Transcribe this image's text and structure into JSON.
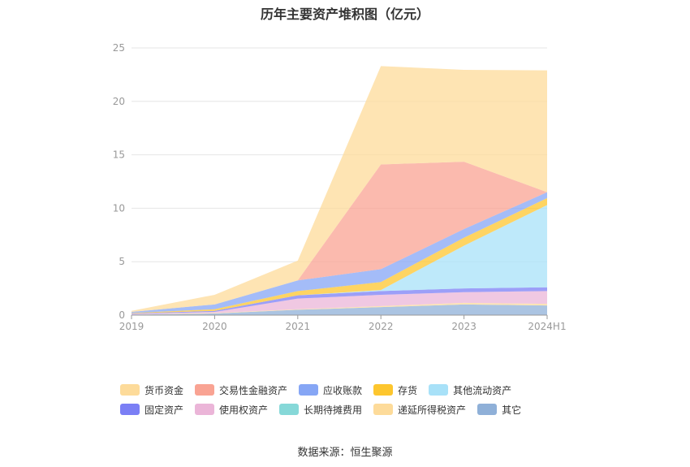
{
  "chart_data": {
    "type": "area",
    "stacked": true,
    "title": "历年主要资产堆积图（亿元）",
    "xlabel": "",
    "ylabel": "",
    "categories": [
      "2019",
      "2020",
      "2021",
      "2022",
      "2023",
      "2024H1"
    ],
    "ylim": [
      0,
      25
    ],
    "yticks": [
      0,
      5,
      10,
      15,
      20,
      25
    ],
    "grid": true,
    "legend_position": "bottom",
    "series": [
      {
        "name": "其它",
        "color": "#8fb0d8",
        "values": [
          0.05,
          0.15,
          0.5,
          0.75,
          1.0,
          0.9
        ]
      },
      {
        "name": "递延所得税资产",
        "color": "#fddb9a",
        "values": [
          0.0,
          0.05,
          0.05,
          0.1,
          0.15,
          0.15
        ]
      },
      {
        "name": "长期待摊费用",
        "color": "#86d8d8",
        "values": [
          0.0,
          0.0,
          0.0,
          0.0,
          0.0,
          0.0
        ]
      },
      {
        "name": "使用权资产",
        "color": "#ebb5d8",
        "values": [
          0.05,
          0.1,
          1.0,
          1.05,
          1.0,
          1.2
        ]
      },
      {
        "name": "固定资产",
        "color": "#7b7ff5",
        "values": [
          0.05,
          0.1,
          0.3,
          0.35,
          0.35,
          0.35
        ]
      },
      {
        "name": "其他流动资产",
        "color": "#a8e1f8",
        "values": [
          0.0,
          0.0,
          0.0,
          0.1,
          4.0,
          7.7
        ]
      },
      {
        "name": "存货",
        "color": "#fdc62e",
        "values": [
          0.05,
          0.15,
          0.4,
          0.75,
          0.75,
          0.65
        ]
      },
      {
        "name": "应收账款",
        "color": "#86a6f5",
        "values": [
          0.1,
          0.45,
          1.0,
          1.2,
          0.8,
          0.55
        ]
      },
      {
        "name": "交易性金融资产",
        "color": "#f9a393",
        "values": [
          0.0,
          0.0,
          0.0,
          9.8,
          6.3,
          0.0
        ]
      },
      {
        "name": "货币资金",
        "color": "#fddb9a",
        "values": [
          0.1,
          0.9,
          1.85,
          9.2,
          8.6,
          11.4
        ]
      }
    ],
    "legend_order": [
      "货币资金",
      "交易性金融资产",
      "应收账款",
      "存货",
      "其他流动资产",
      "固定资产",
      "使用权资产",
      "长期待摊费用",
      "递延所得税资产",
      "其它"
    ]
  },
  "footer": {
    "source": "数据来源：恒生聚源"
  }
}
